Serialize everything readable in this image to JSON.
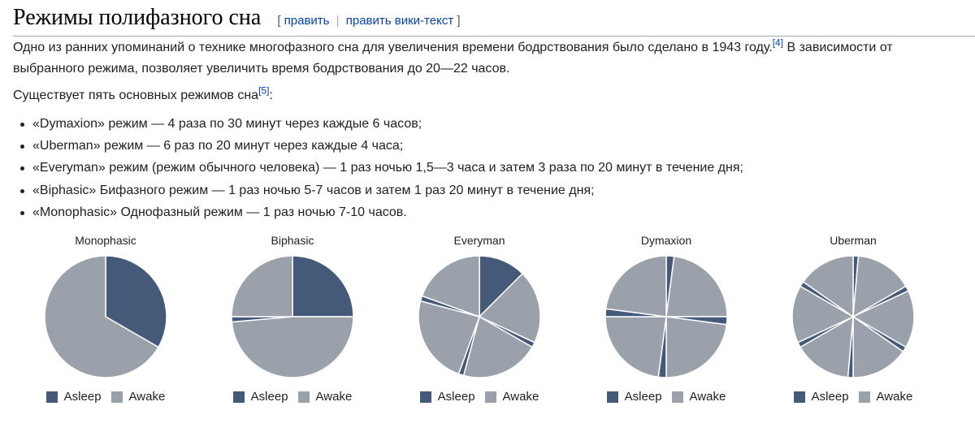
{
  "heading": {
    "title": "Режимы полифазного сна",
    "edit_open": "[",
    "edit_link": "править",
    "edit_sep": "|",
    "edit_wiki_link": "править вики-текст",
    "edit_close": "]"
  },
  "intro": {
    "text1": "Одно из ранних упоминаний о технике многофазного сна для увеличения времени бодрствования было сделано в 1943 году.",
    "ref1": "[4]",
    "text2": " В зависимости от выбранного режима, позволяет увеличить время бодрствования до 20—22 часов."
  },
  "modes_intro": {
    "text": "Существует пять основных режимов сна",
    "ref": "[5]",
    "colon": ":"
  },
  "modes": [
    "«Dymaxion» режим — 4 раза по 30 минут через каждые 6 часов;",
    "«Uberman» режим — 6 раз по 20 минут через каждые 4 часа;",
    "«Everyman» режим (режим обычного человека) — 1 раз ночью 1,5—3 часа и затем 3 раза по 20 минут в течение дня;",
    "«Biphasic» Бифазного режим — 1 раз ночью 5-7 часов и затем 1 раз 20 минут в течение дня;",
    "«Monophasic» Однофазный режим — 1 раз ночью 7-10 часов."
  ],
  "colors": {
    "asleep": "#455a78",
    "awake": "#9aa1aa",
    "link": "#0645ad"
  },
  "legend": {
    "asleep": "Asleep",
    "awake": "Awake"
  },
  "chart_data": [
    {
      "type": "pie",
      "title": "Monophasic",
      "segments": [
        {
          "state": "asleep",
          "hours": 8
        },
        {
          "state": "awake",
          "hours": 16
        }
      ]
    },
    {
      "type": "pie",
      "title": "Biphasic",
      "segments": [
        {
          "state": "asleep",
          "hours": 6
        },
        {
          "state": "awake",
          "hours": 11.67
        },
        {
          "state": "asleep",
          "hours": 0.33
        },
        {
          "state": "awake",
          "hours": 6
        }
      ]
    },
    {
      "type": "pie",
      "title": "Everyman",
      "segments": [
        {
          "state": "asleep",
          "hours": 3
        },
        {
          "state": "awake",
          "hours": 4.67
        },
        {
          "state": "asleep",
          "hours": 0.33
        },
        {
          "state": "awake",
          "hours": 5
        },
        {
          "state": "asleep",
          "hours": 0.33
        },
        {
          "state": "awake",
          "hours": 5.67
        },
        {
          "state": "asleep",
          "hours": 0.33
        },
        {
          "state": "awake",
          "hours": 4.67
        }
      ]
    },
    {
      "type": "pie",
      "title": "Dymaxion",
      "segments": [
        {
          "state": "asleep",
          "hours": 0.5
        },
        {
          "state": "awake",
          "hours": 5.5
        },
        {
          "state": "asleep",
          "hours": 0.5
        },
        {
          "state": "awake",
          "hours": 5.5
        },
        {
          "state": "asleep",
          "hours": 0.5
        },
        {
          "state": "awake",
          "hours": 5.5
        },
        {
          "state": "asleep",
          "hours": 0.5
        },
        {
          "state": "awake",
          "hours": 5.5
        }
      ]
    },
    {
      "type": "pie",
      "title": "Uberman",
      "segments": [
        {
          "state": "asleep",
          "hours": 0.33
        },
        {
          "state": "awake",
          "hours": 3.67
        },
        {
          "state": "asleep",
          "hours": 0.33
        },
        {
          "state": "awake",
          "hours": 3.67
        },
        {
          "state": "asleep",
          "hours": 0.33
        },
        {
          "state": "awake",
          "hours": 3.67
        },
        {
          "state": "asleep",
          "hours": 0.33
        },
        {
          "state": "awake",
          "hours": 3.67
        },
        {
          "state": "asleep",
          "hours": 0.33
        },
        {
          "state": "awake",
          "hours": 3.67
        },
        {
          "state": "asleep",
          "hours": 0.33
        },
        {
          "state": "awake",
          "hours": 3.67
        }
      ]
    }
  ]
}
